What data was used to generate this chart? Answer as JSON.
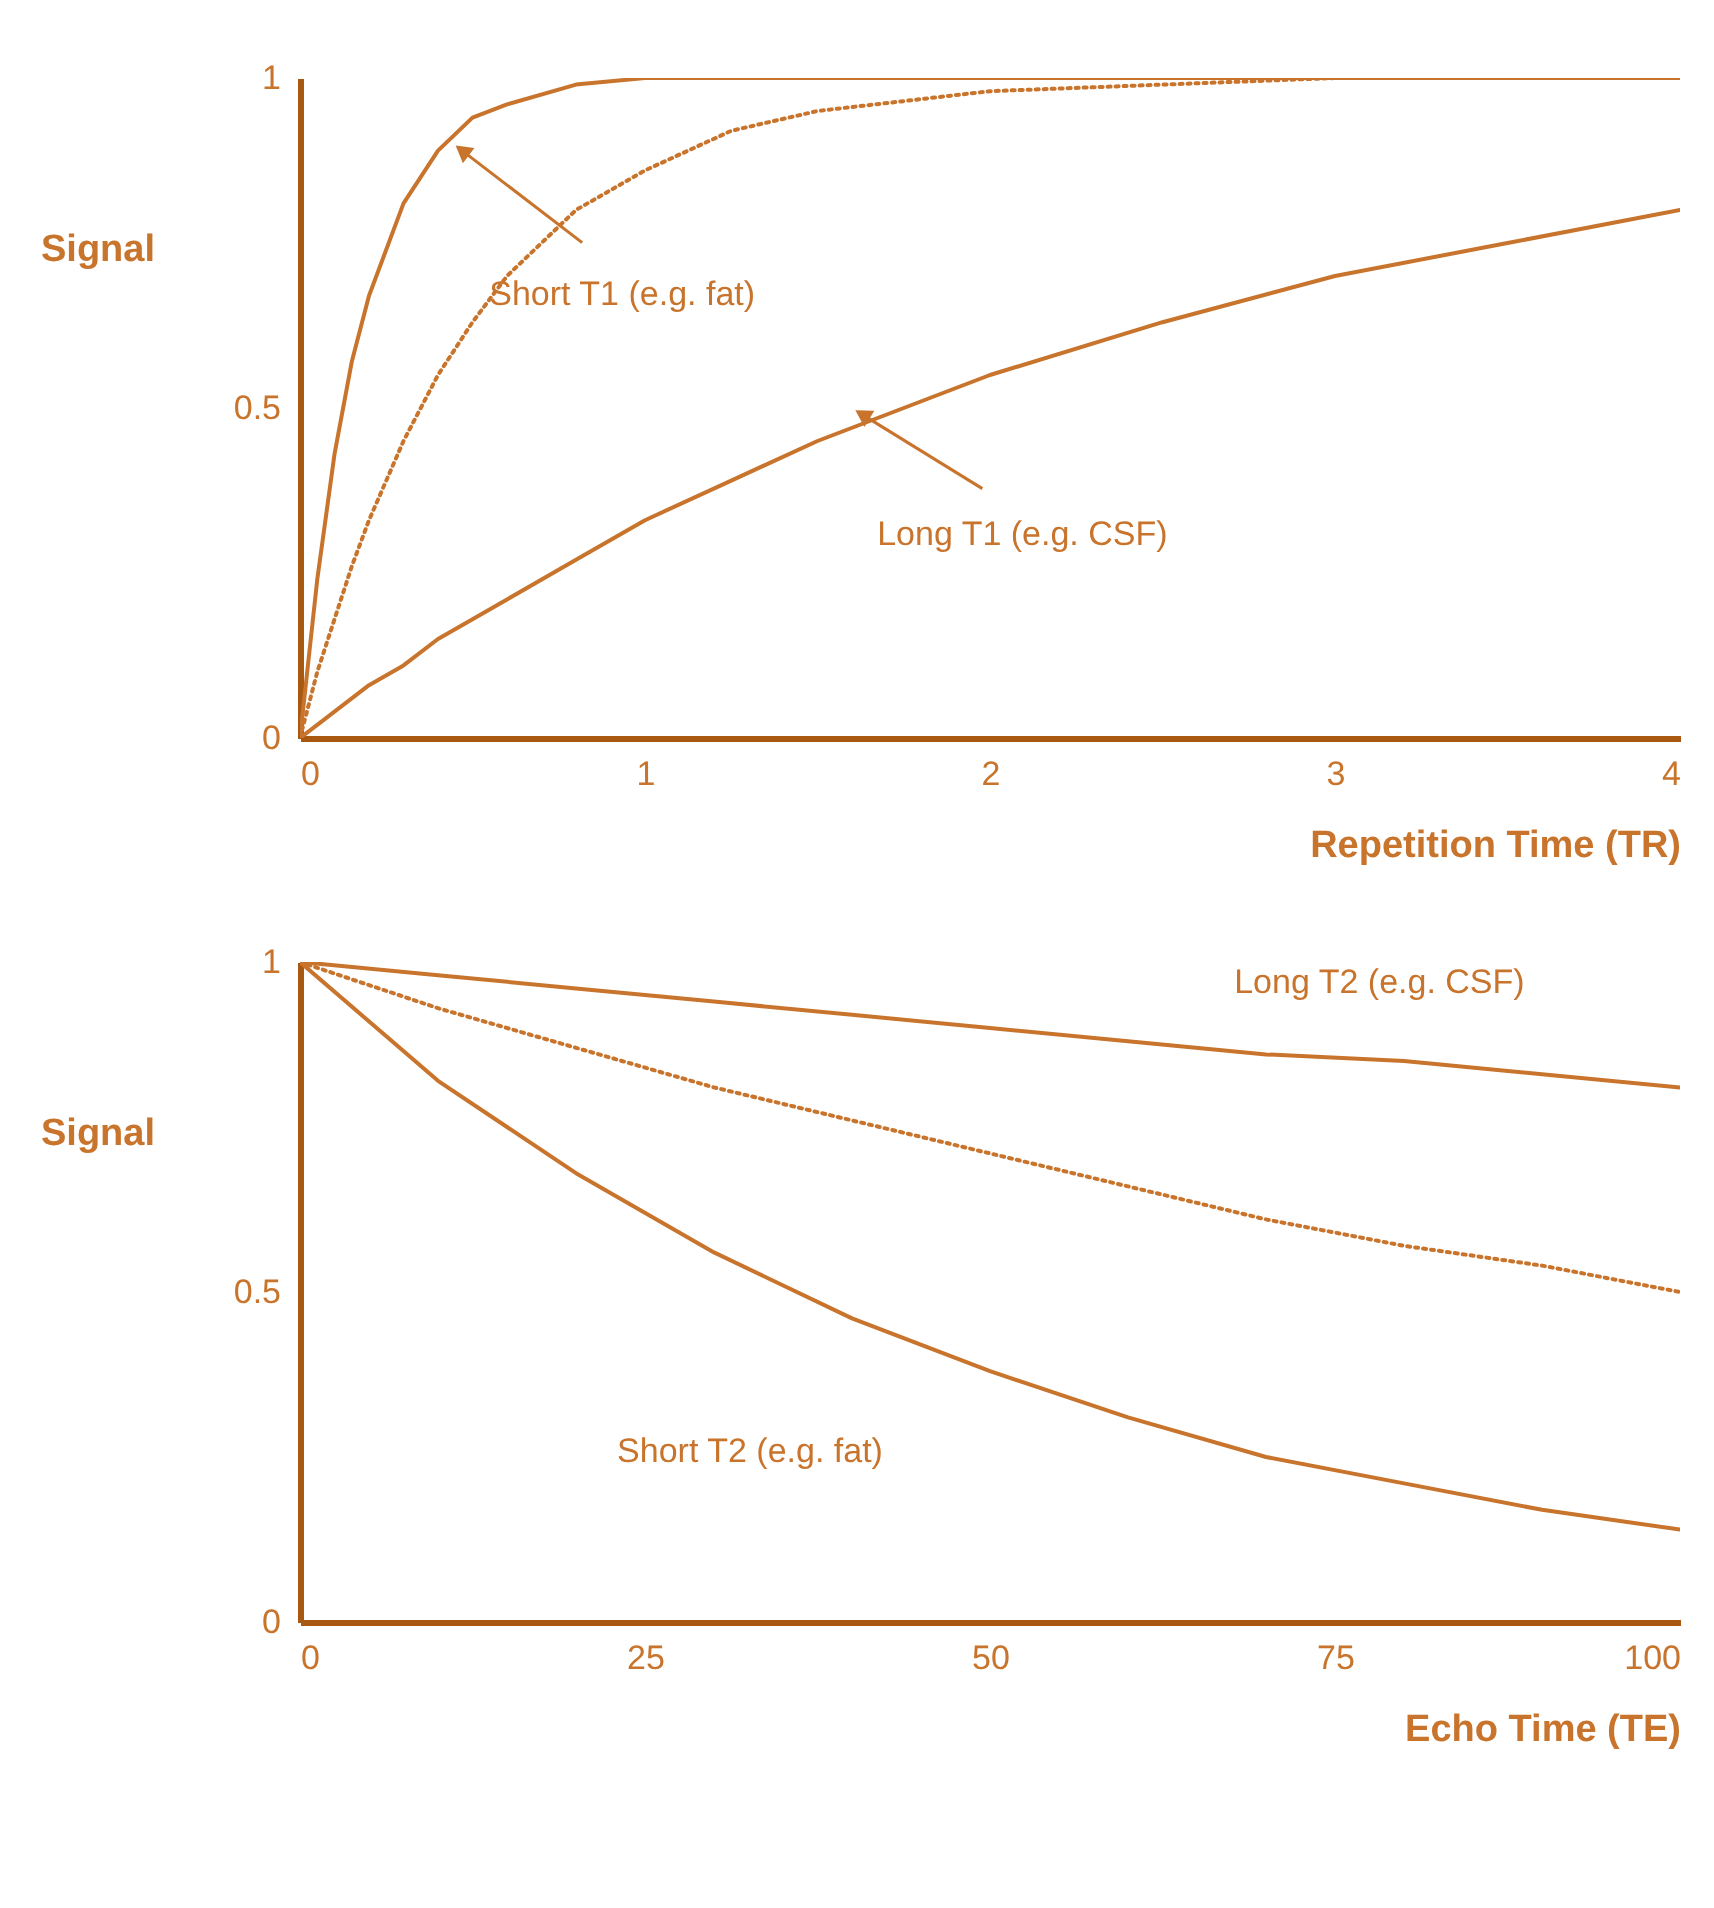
{
  "chart_data": [
    {
      "type": "line",
      "xlabel": "Repetition Time (TR)",
      "ylabel": "Signal",
      "xlim": [
        0,
        4
      ],
      "xticks": [
        0,
        1,
        2,
        3,
        4
      ],
      "ylim": [
        0,
        1
      ],
      "yticks": [
        0,
        0.5,
        1
      ],
      "grid": false,
      "marker": "none",
      "x": [
        0,
        0.05,
        0.1,
        0.15,
        0.2,
        0.3,
        0.4,
        0.5,
        0.6,
        0.8,
        1,
        1.25,
        1.5,
        2,
        2.5,
        3,
        3.5,
        4
      ],
      "series": [
        {
          "color": "#c8742c",
          "line_style": "solid",
          "values": [
            0,
            0.24,
            0.43,
            0.57,
            0.67,
            0.81,
            0.89,
            0.94,
            0.96,
            0.99,
            1,
            1,
            1,
            1,
            1,
            1,
            1,
            1
          ]
        },
        {
          "color": "#c8742c",
          "line_style": "dotted",
          "values": [
            0,
            0.1,
            0.18,
            0.26,
            0.33,
            0.45,
            0.55,
            0.63,
            0.7,
            0.8,
            0.86,
            0.92,
            0.95,
            0.98,
            0.99,
            1,
            1,
            1
          ]
        },
        {
          "color": "#c8742c",
          "line_style": "solid",
          "values": [
            0,
            0.02,
            0.04,
            0.06,
            0.08,
            0.11,
            0.15,
            0.18,
            0.21,
            0.27,
            0.33,
            0.39,
            0.45,
            0.55,
            0.63,
            0.7,
            0.75,
            0.8
          ]
        }
      ],
      "annotations": [
        {
          "text": "Short T1 (e.g. fat)",
          "x": 0.47,
          "y": 0.89
        },
        {
          "text": "Long T1 (e.g. CSF)",
          "x": 1.63,
          "y": 0.49
        }
      ]
    },
    {
      "type": "line",
      "xlabel": "Echo Time (TE)",
      "ylabel": "Signal",
      "xlim": [
        0,
        100
      ],
      "xticks": [
        0,
        25,
        50,
        75,
        100
      ],
      "ylim": [
        0,
        1
      ],
      "yticks": [
        0,
        0.5,
        1
      ],
      "grid": false,
      "marker": "none",
      "x": [
        0,
        10,
        20,
        30,
        40,
        50,
        60,
        70,
        80,
        90,
        100
      ],
      "series": [
        {
          "color": "#c8742c",
          "line_style": "solid",
          "values": [
            1,
            0.98,
            0.96,
            0.94,
            0.92,
            0.9,
            0.88,
            0.86,
            0.85,
            0.83,
            0.81
          ]
        },
        {
          "color": "#c8742c",
          "line_style": "dotted",
          "values": [
            1,
            0.93,
            0.87,
            0.81,
            0.76,
            0.71,
            0.66,
            0.61,
            0.57,
            0.54,
            0.5
          ]
        },
        {
          "color": "#c8742c",
          "line_style": "solid",
          "values": [
            1,
            0.82,
            0.68,
            0.56,
            0.46,
            0.38,
            0.31,
            0.25,
            0.21,
            0.17,
            0.14
          ]
        }
      ],
      "annotations": [
        {
          "text": "Long T2 (e.g. CSF)",
          "x": 63,
          "y": 0.88
        },
        "Short T2 (e.g. fat)"
      ]
    }
  ]
}
